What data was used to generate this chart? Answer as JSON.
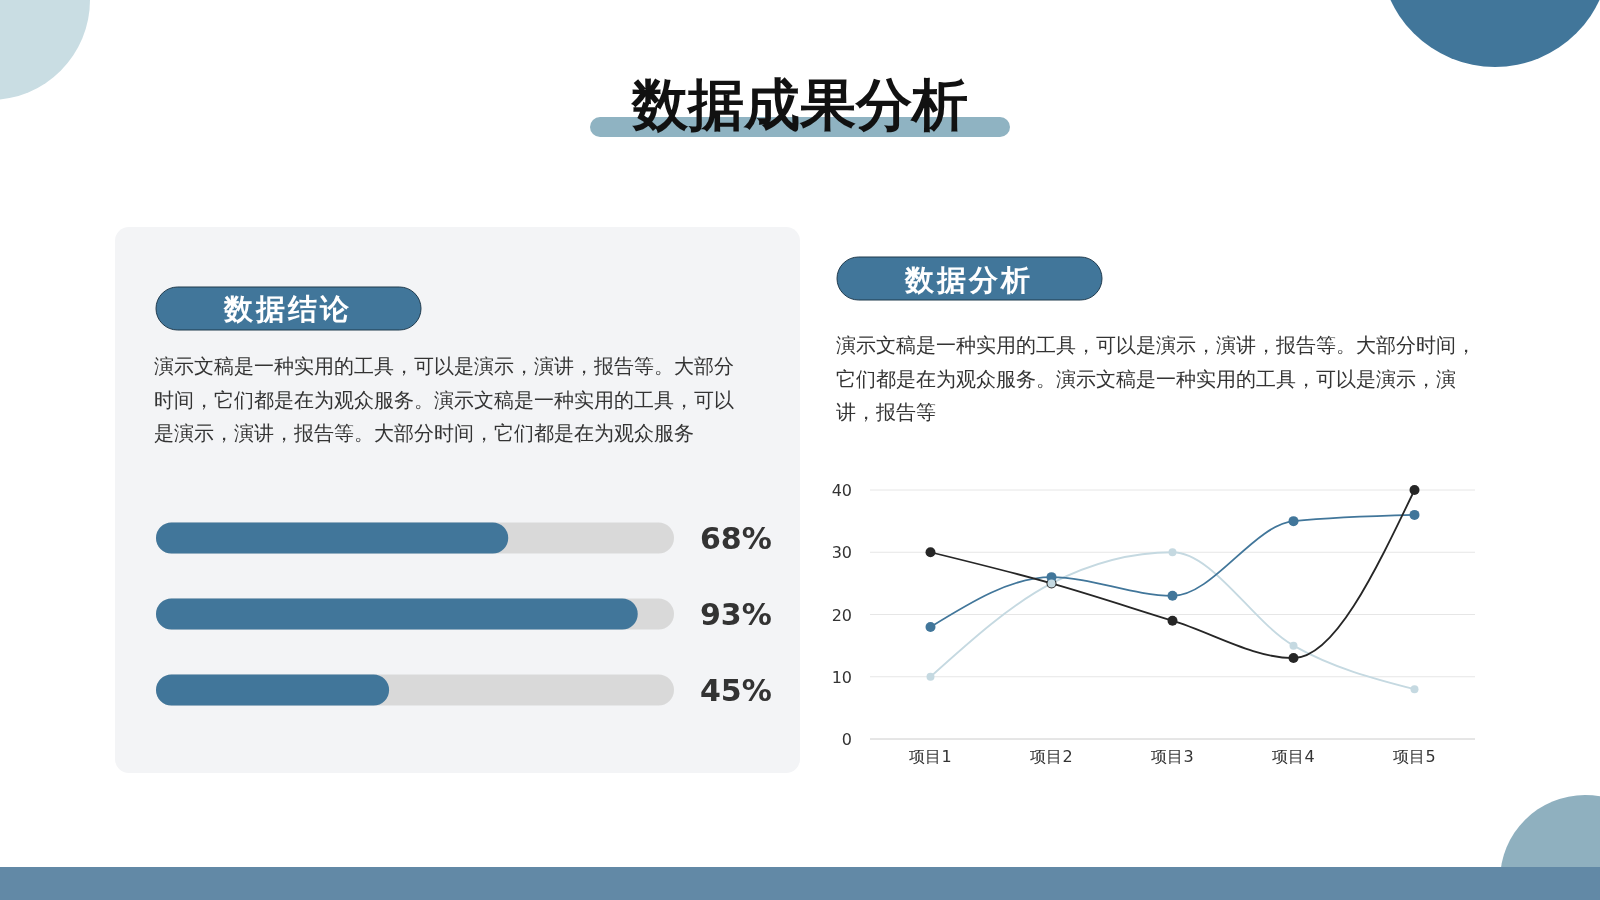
{
  "chart_data": [
    {
      "type": "bar",
      "title": "数据成果分析",
      "subtitle": "数据结论",
      "annotations": [
        "演示文稿是一种实用的工具，可以是演示，演讲，报告等。大部分时间，它们都是在为观众服务。演示文稿是一种实用的工具，可以是演示，演讲，报告等。大部分时间，它们都是在为观众服务"
      ],
      "orientation": "horizontal",
      "categories": [
        null,
        null,
        null
      ],
      "values": [
        68,
        93,
        45
      ],
      "color": "#41769a",
      "value_labels": [
        "68%",
        "93%",
        "45%"
      ],
      "xlim": [
        0,
        100
      ]
    },
    {
      "type": "line",
      "title": "数据分析",
      "subtitle": "演示文稿是一种实用的工具，可以是演示，演讲，报告等。大部分时间，它们都是在为观众服务。演示文稿是一种实用的工具，可以是演示，演讲，报告等",
      "categories": [
        "项目1",
        "项目2",
        "项目3",
        "项目4",
        "项目5"
      ],
      "series": [
        {
          "color": "#c5d9e1",
          "values": [
            10,
            25,
            30,
            15,
            8
          ]
        },
        {
          "color": "#41769a",
          "values": [
            18,
            26,
            23,
            35,
            36
          ]
        },
        {
          "color": "#262626",
          "values": [
            30,
            25,
            19,
            13,
            40
          ]
        }
      ],
      "ylim": [
        0,
        40
      ],
      "yticks": [
        0,
        10,
        20,
        30,
        40
      ],
      "grid": "y",
      "marker": "circle"
    }
  ]
}
